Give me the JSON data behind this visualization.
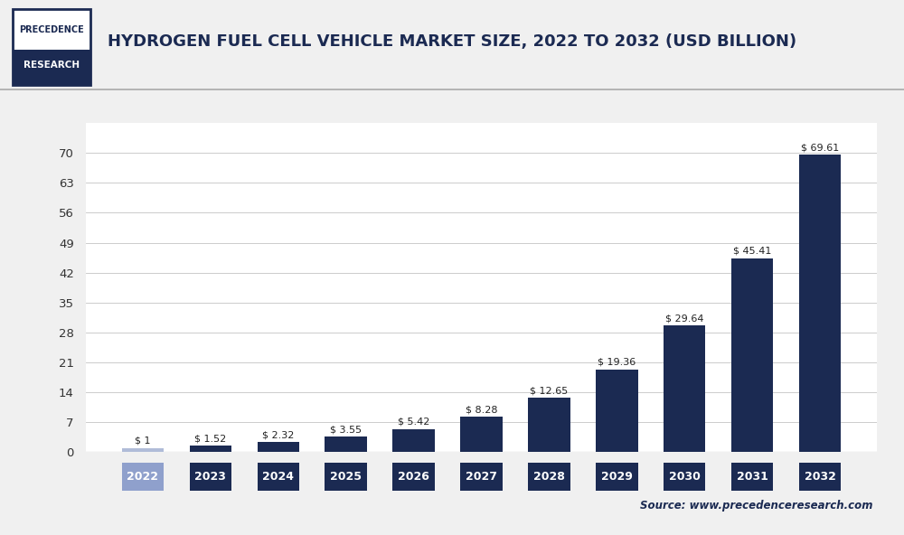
{
  "title": "HYDROGEN FUEL CELL VEHICLE MARKET SIZE, 2022 TO 2032 (USD BILLION)",
  "years": [
    "2022",
    "2023",
    "2024",
    "2025",
    "2026",
    "2027",
    "2028",
    "2029",
    "2030",
    "2031",
    "2032"
  ],
  "values": [
    1.0,
    1.52,
    2.32,
    3.55,
    5.42,
    8.28,
    12.65,
    19.36,
    29.64,
    45.41,
    69.61
  ],
  "labels": [
    "$ 1",
    "$ 1.52",
    "$ 2.32",
    "$ 3.55",
    "$ 5.42",
    "$ 8.28",
    "$ 12.65",
    "$ 19.36",
    "$ 29.64",
    "$ 45.41",
    "$ 69.61"
  ],
  "bar_colors": [
    "#b0bcd8",
    "#1b2a52",
    "#1b2a52",
    "#1b2a52",
    "#1b2a52",
    "#1b2a52",
    "#1b2a52",
    "#1b2a52",
    "#1b2a52",
    "#1b2a52",
    "#1b2a52"
  ],
  "tick_box_colors": [
    "#8fa0cc",
    "#1b2a52",
    "#1b2a52",
    "#1b2a52",
    "#1b2a52",
    "#1b2a52",
    "#1b2a52",
    "#1b2a52",
    "#1b2a52",
    "#1b2a52",
    "#1b2a52"
  ],
  "main_bar_color": "#1b2a52",
  "background_color": "#f0f0f0",
  "chart_bg_color": "#ffffff",
  "grid_color": "#cccccc",
  "ylim": [
    0,
    77
  ],
  "yticks": [
    0,
    7,
    14,
    21,
    28,
    35,
    42,
    49,
    56,
    63,
    70
  ],
  "source_text": "Source: www.precedenceresearch.com",
  "title_color": "#1b2a52",
  "logo_text_top": "PRECEDENCE",
  "logo_text_bottom": "RESEARCH",
  "logo_border_color": "#1b2a52",
  "logo_bg_bottom": "#1b2a52",
  "logo_text_color_top": "#1b2a52",
  "logo_text_color_bottom": "#ffffff",
  "separator_color": "#aaaaaa"
}
